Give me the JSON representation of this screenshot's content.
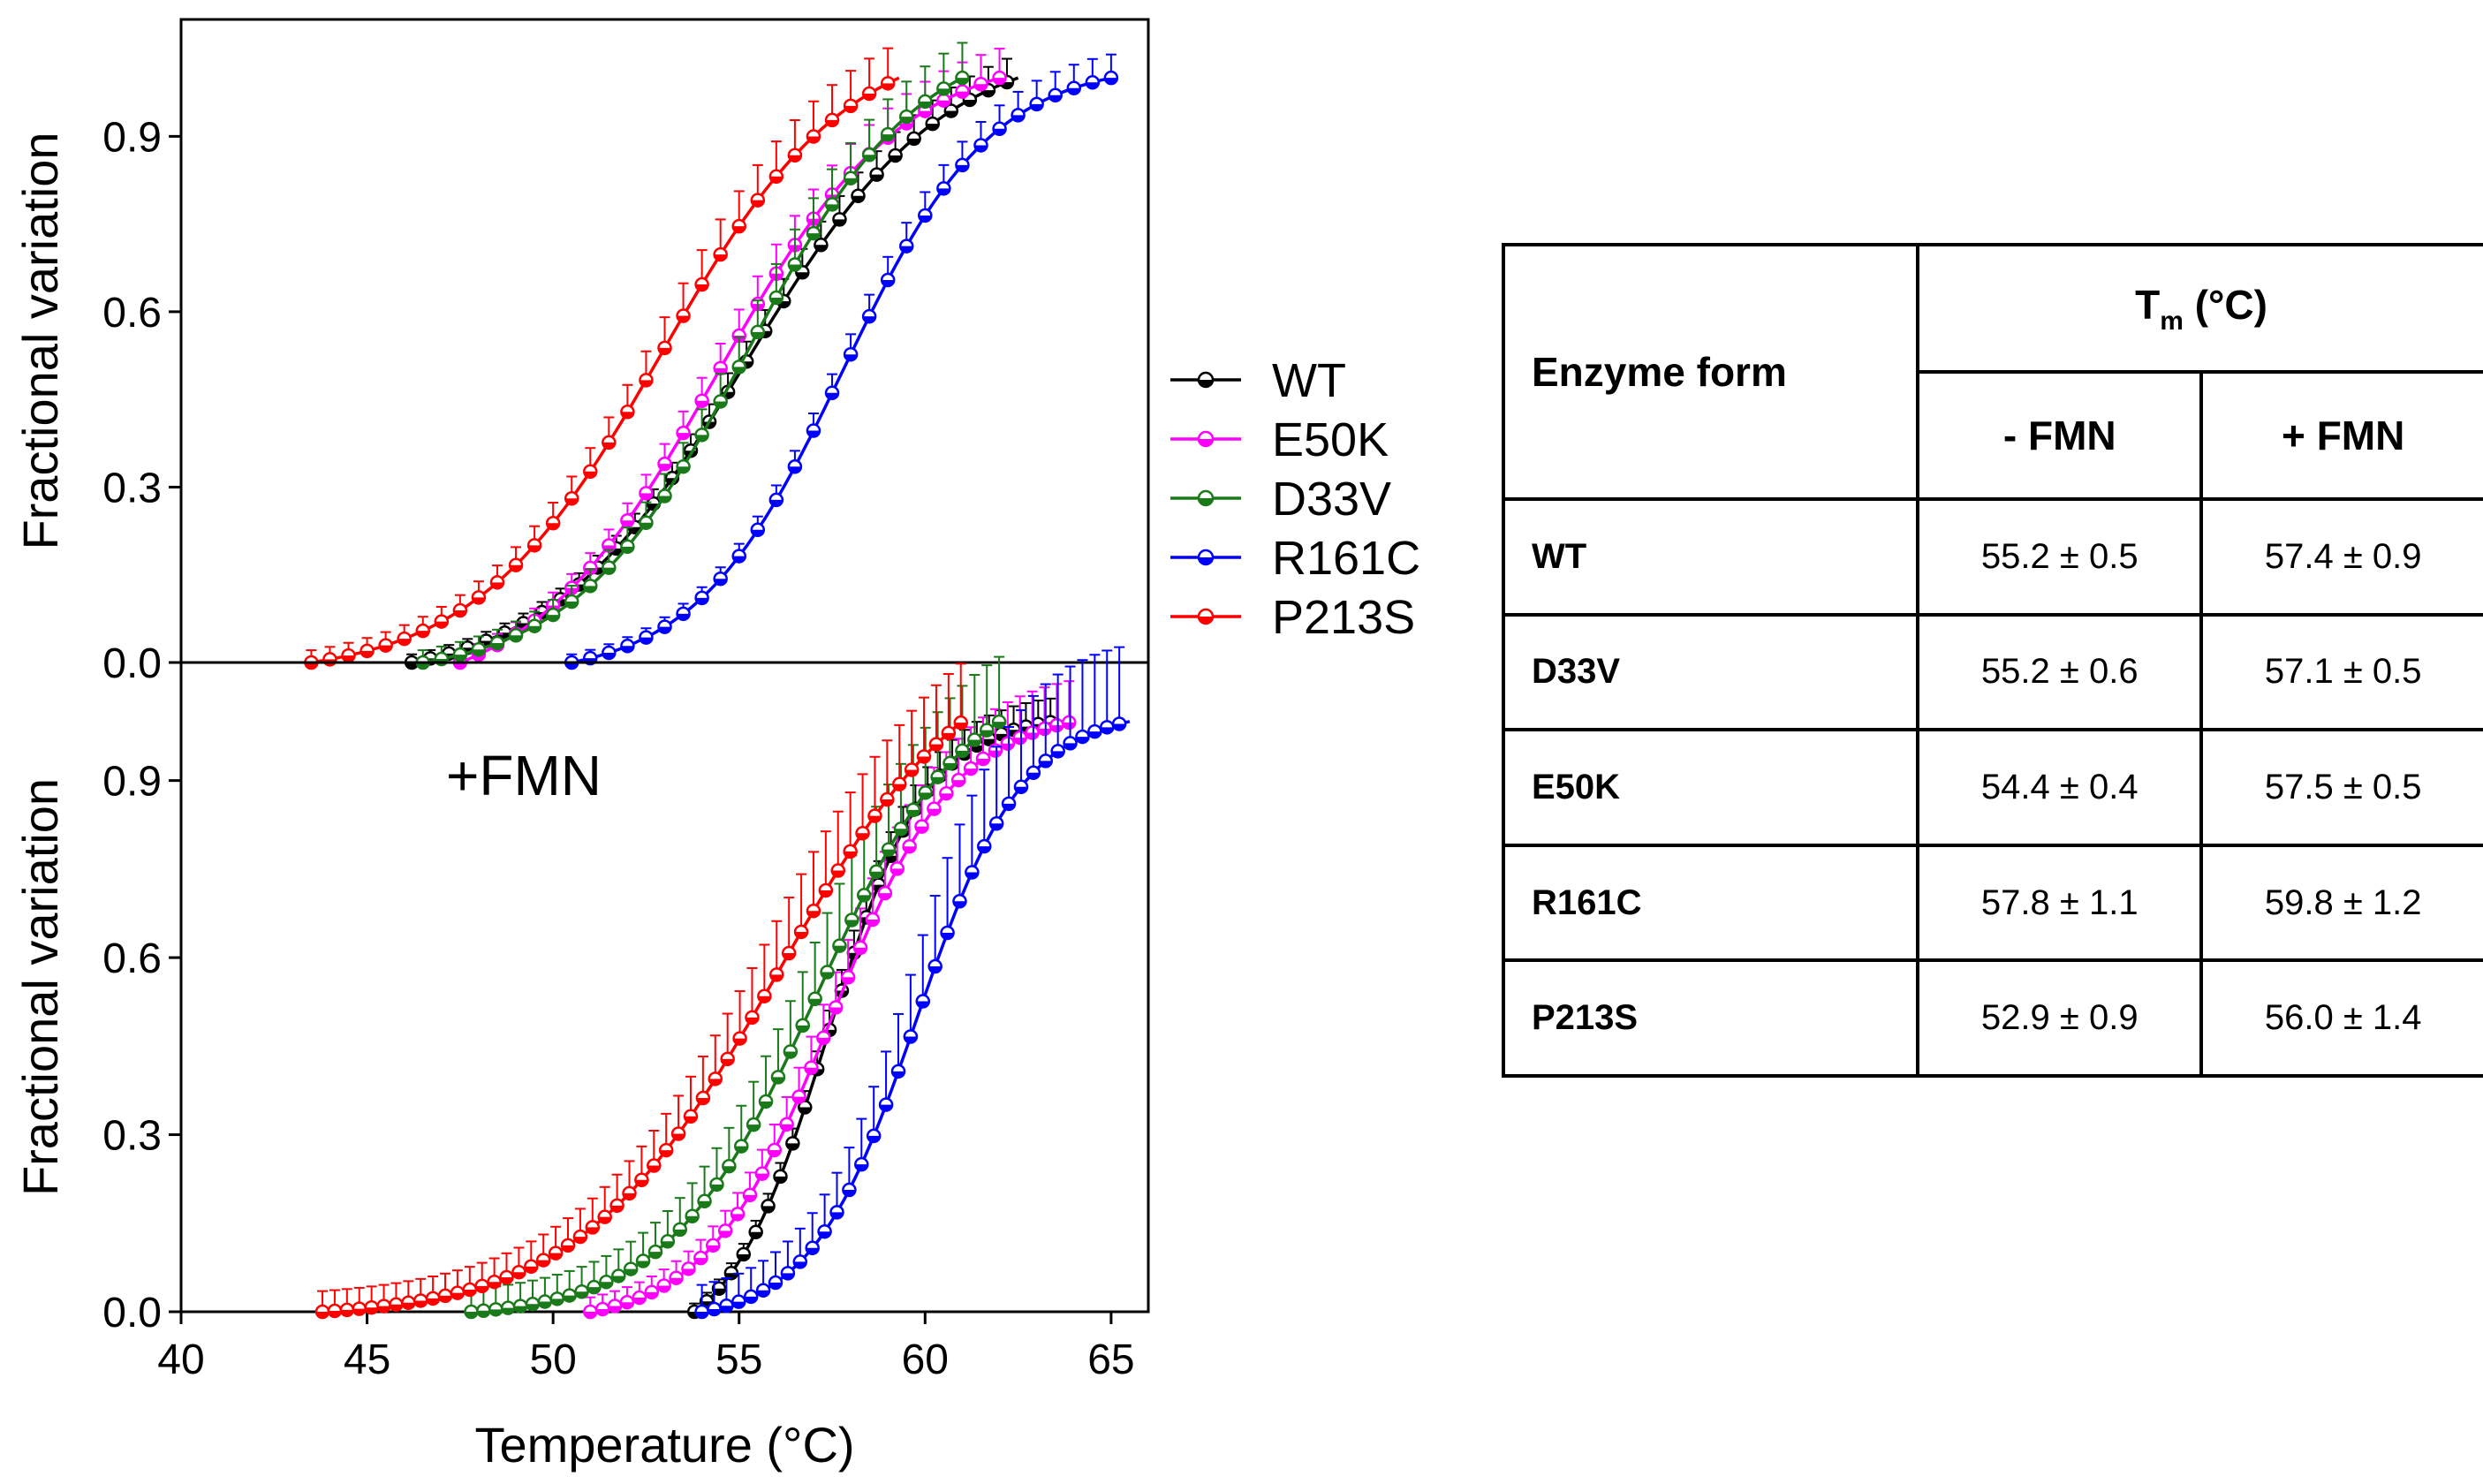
{
  "chart_data": [
    {
      "type": "line",
      "panel": "top",
      "title": "",
      "annotation": "",
      "xlabel": "",
      "ylabel": "Fractional variation",
      "xlim": [
        40,
        66
      ],
      "ylim": [
        0,
        1.1
      ],
      "xticks": [
        "40",
        "45",
        "50",
        "55",
        "60",
        "65"
      ],
      "yticks": [
        "0.0",
        "0.3",
        "0.6",
        "0.9"
      ],
      "y_tick_values": [
        0.0,
        0.3,
        0.6,
        0.9
      ],
      "series": [
        {
          "name": "WT",
          "color": "#000000",
          "x_start": 46.2,
          "x_end": 62.5,
          "x_step": 0.5,
          "tm": 55.2,
          "slope": 0.38,
          "err": 0.04
        },
        {
          "name": "E50K",
          "color": "#ff00ff",
          "x_start": 47.5,
          "x_end": 62.0,
          "x_step": 0.5,
          "tm": 54.4,
          "slope": 0.4,
          "err": 0.05
        },
        {
          "name": "D33V",
          "color": "#1a7a1a",
          "x_start": 46.5,
          "x_end": 61.0,
          "x_step": 0.5,
          "tm": 55.2,
          "slope": 0.43,
          "err": 0.06
        },
        {
          "name": "R161C",
          "color": "#0000ff",
          "x_start": 50.5,
          "x_end": 65.0,
          "x_step": 0.5,
          "tm": 57.8,
          "slope": 0.5,
          "err": 0.04
        },
        {
          "name": "P213S",
          "color": "#ff0000",
          "x_start": 43.5,
          "x_end": 59.3,
          "x_step": 0.5,
          "tm": 52.9,
          "slope": 0.4,
          "err": 0.06
        }
      ]
    },
    {
      "type": "line",
      "panel": "bottom",
      "title": "",
      "annotation": "+FMN",
      "xlabel": "Temperature (°C)",
      "ylabel": "Fractional variation",
      "xlim": [
        40,
        66
      ],
      "ylim": [
        0,
        1.1
      ],
      "xticks": [
        "40",
        "45",
        "50",
        "55",
        "60",
        "65"
      ],
      "yticks": [
        "0.0",
        "0.3",
        "0.6",
        "0.9"
      ],
      "y_tick_values": [
        0.0,
        0.3,
        0.6,
        0.9
      ],
      "series": [
        {
          "name": "WT",
          "color": "#000000",
          "x_start": 53.8,
          "x_end": 63.5,
          "x_step": 0.33,
          "tm": 57.4,
          "slope": 0.75,
          "err": 0.04
        },
        {
          "name": "E50K",
          "color": "#ff00ff",
          "x_start": 51.0,
          "x_end": 64.0,
          "x_step": 0.33,
          "tm": 57.5,
          "slope": 0.6,
          "err": 0.07
        },
        {
          "name": "D33V",
          "color": "#1a7a1a",
          "x_start": 47.8,
          "x_end": 62.0,
          "x_step": 0.33,
          "tm": 57.1,
          "slope": 0.5,
          "err": 0.11
        },
        {
          "name": "R161C",
          "color": "#0000ff",
          "x_start": 54.0,
          "x_end": 65.5,
          "x_step": 0.33,
          "tm": 59.8,
          "slope": 0.7,
          "err": 0.13
        },
        {
          "name": "P213S",
          "color": "#ff0000",
          "x_start": 43.8,
          "x_end": 61.0,
          "x_step": 0.33,
          "tm": 56.0,
          "slope": 0.38,
          "err": 0.1
        }
      ]
    }
  ],
  "legend": {
    "entries": [
      {
        "name": "WT",
        "color": "#000000"
      },
      {
        "name": "E50K",
        "color": "#ff00ff"
      },
      {
        "name": "D33V",
        "color": "#1a7a1a"
      },
      {
        "name": "R161C",
        "color": "#0000ff"
      },
      {
        "name": "P213S",
        "color": "#ff0000"
      }
    ]
  },
  "table": {
    "header_row_label": "Enzyme form",
    "tm_label": "T",
    "tm_sub": "m",
    "tm_unit": " (°C)",
    "col_minus": "- FMN",
    "col_plus": "+ FMN",
    "rows": [
      {
        "form": "WT",
        "minus": "55.2 ± 0.5",
        "plus": "57.4 ± 0.9"
      },
      {
        "form": "D33V",
        "minus": "55.2 ± 0.6",
        "plus": "57.1 ± 0.5"
      },
      {
        "form": "E50K",
        "minus": "54.4 ± 0.4",
        "plus": "57.5 ± 0.5"
      },
      {
        "form": "R161C",
        "minus": "57.8 ± 1.1",
        "plus": "59.8 ± 1.2"
      },
      {
        "form": "P213S",
        "minus": "52.9 ± 0.9",
        "plus": "56.0 ± 1.4"
      }
    ]
  }
}
